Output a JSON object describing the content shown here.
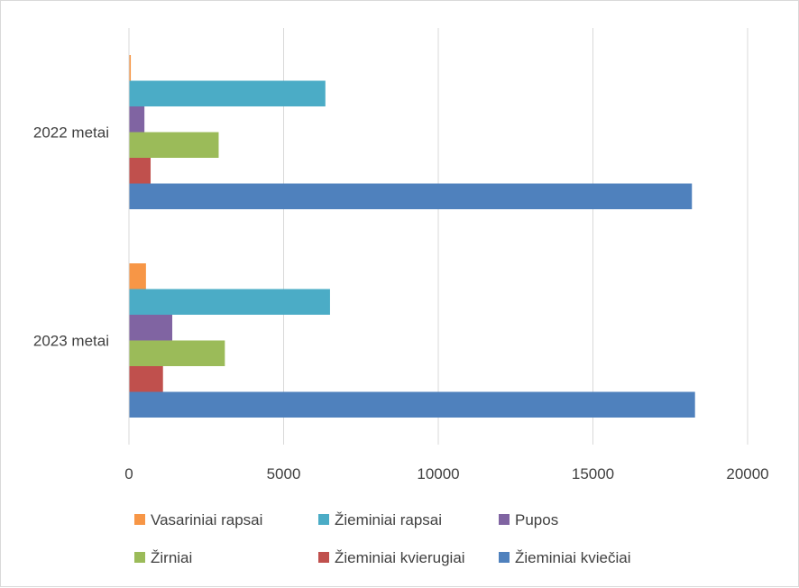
{
  "chart_data": {
    "type": "bar",
    "orientation": "horizontal",
    "categories": [
      "2022 metai",
      "2023 metai"
    ],
    "series": [
      {
        "name": "Vasariniai rapsai",
        "color": "#f79646",
        "values": [
          60,
          550
        ]
      },
      {
        "name": "Žieminiai rapsai",
        "color": "#4bacc6",
        "values": [
          6350,
          6500
        ]
      },
      {
        "name": "Pupos",
        "color": "#8064a2",
        "values": [
          500,
          1400
        ]
      },
      {
        "name": "Žirniai",
        "color": "#9bbb59",
        "values": [
          2900,
          3100
        ]
      },
      {
        "name": "Žieminiai kvierugiai",
        "color": "#c0504d",
        "values": [
          700,
          1100
        ]
      },
      {
        "name": "Žieminiai kviečiai",
        "color": "#4f81bd",
        "values": [
          18200,
          18300
        ]
      }
    ],
    "xlim": [
      0,
      20000
    ],
    "xticks": [
      0,
      5000,
      10000,
      15000,
      20000
    ],
    "grid": "vertical",
    "legend_position": "bottom",
    "legend_rows": [
      [
        "Vasariniai rapsai",
        "Žieminiai rapsai",
        "Pupos"
      ],
      [
        "Žirniai",
        "Žieminiai kvierugiai",
        "Žieminiai kviečiai"
      ]
    ]
  }
}
